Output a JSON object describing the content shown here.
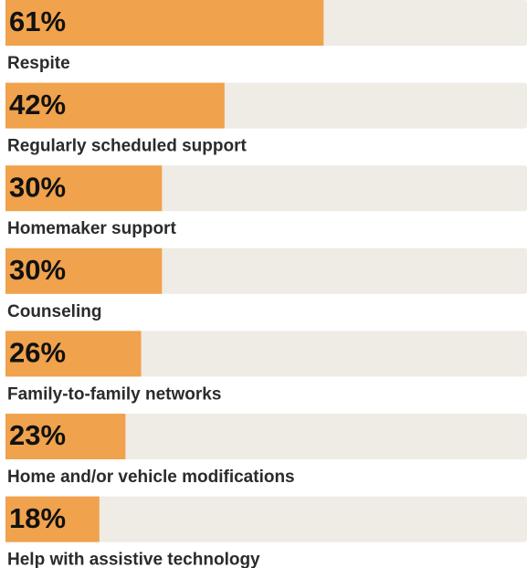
{
  "chart_data": {
    "type": "bar",
    "orientation": "horizontal",
    "categories": [
      "Respite",
      "Regularly scheduled support",
      "Homemaker support",
      "Counseling",
      "Family-to-family networks",
      "Home and/or vehicle modifications",
      "Help with assistive technology"
    ],
    "values": [
      61,
      42,
      30,
      30,
      26,
      23,
      18
    ],
    "value_labels": [
      "61%",
      "42%",
      "30%",
      "30%",
      "26%",
      "23%",
      "18%"
    ],
    "color": "#f0a24c",
    "track_color": "#efebe5",
    "xlim": [
      0,
      100
    ]
  }
}
